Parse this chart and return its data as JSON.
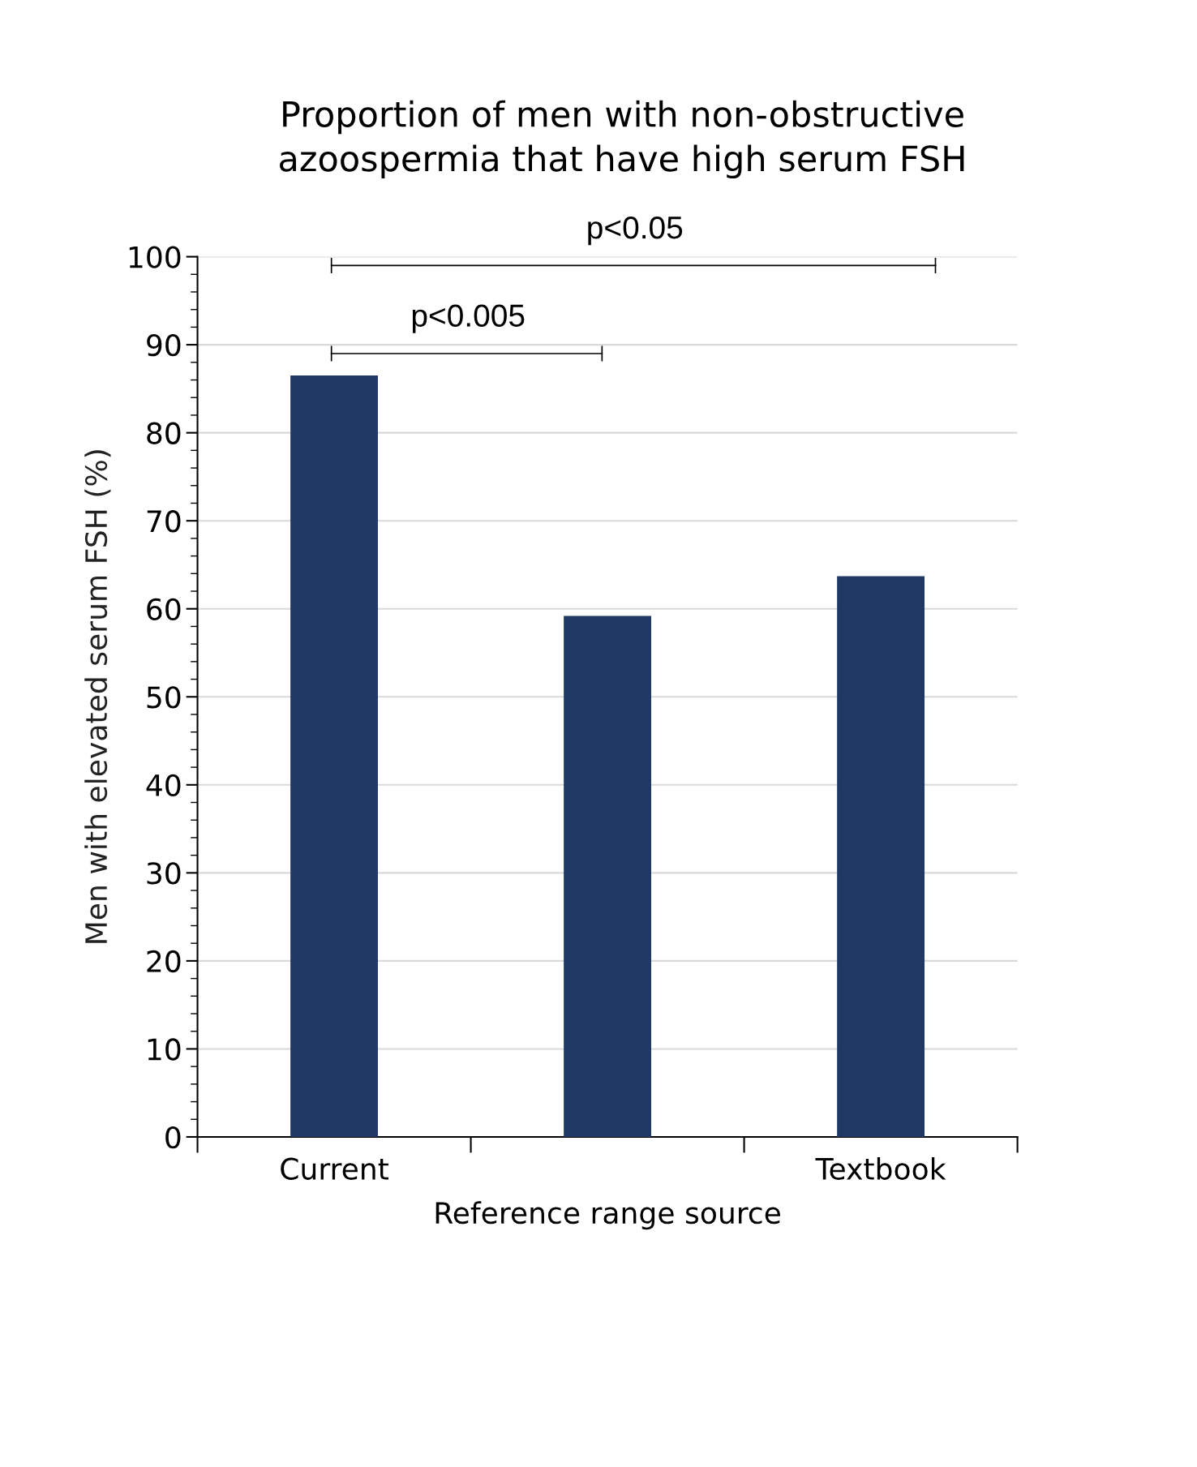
{
  "chart_data": {
    "type": "bar",
    "title": "Proportion of men with non-obstructive\nazoospermia that have high serum FSH",
    "xlabel": "Reference range source",
    "ylabel": "Men with elevated serum FSH (%)",
    "categories": [
      "Current",
      null,
      "Textbook"
    ],
    "values": [
      86.5,
      59.2,
      63.7
    ],
    "color": "#203864",
    "ylim": [
      0,
      100
    ],
    "grid": "y",
    "yticks": [
      0,
      {
        "value": 2,
        "label": null
      },
      {
        "value": 4,
        "label": null
      },
      {
        "value": 6,
        "label": null
      },
      {
        "value": 8,
        "label": null
      },
      10,
      {
        "value": 12,
        "label": null
      },
      {
        "value": 14,
        "label": null
      },
      {
        "value": 16,
        "label": null
      },
      {
        "value": 18,
        "label": null
      },
      20,
      {
        "value": 22,
        "label": null
      },
      {
        "value": 24,
        "label": null
      },
      {
        "value": 26,
        "label": null
      },
      {
        "value": 28,
        "label": null
      },
      30,
      {
        "value": 32,
        "label": null
      },
      {
        "value": 34,
        "label": null
      },
      {
        "value": 36,
        "label": null
      },
      {
        "value": 38,
        "label": null
      },
      40,
      {
        "value": 42,
        "label": null
      },
      {
        "value": 44,
        "label": null
      },
      {
        "value": 46,
        "label": null
      },
      {
        "value": 48,
        "label": null
      },
      50,
      {
        "value": 52,
        "label": null
      },
      {
        "value": 54,
        "label": null
      },
      {
        "value": 56,
        "label": null
      },
      {
        "value": 58,
        "label": null
      },
      60,
      {
        "value": 62,
        "label": null
      },
      {
        "value": 64,
        "label": null
      },
      {
        "value": 66,
        "label": null
      },
      {
        "value": 68,
        "label": null
      },
      70,
      {
        "value": 72,
        "label": null
      },
      {
        "value": 74,
        "label": null
      },
      {
        "value": 76,
        "label": null
      },
      {
        "value": 78,
        "label": null
      },
      80,
      {
        "value": 82,
        "label": null
      },
      {
        "value": 84,
        "label": null
      },
      {
        "value": 86,
        "label": null
      },
      {
        "value": 88,
        "label": null
      },
      90,
      {
        "value": 92,
        "label": null
      },
      {
        "value": 94,
        "label": null
      },
      {
        "value": 96,
        "label": null
      },
      {
        "value": 98,
        "label": null
      },
      100
    ],
    "annotations": [
      "p<0.005",
      "p<0.05"
    ]
  }
}
